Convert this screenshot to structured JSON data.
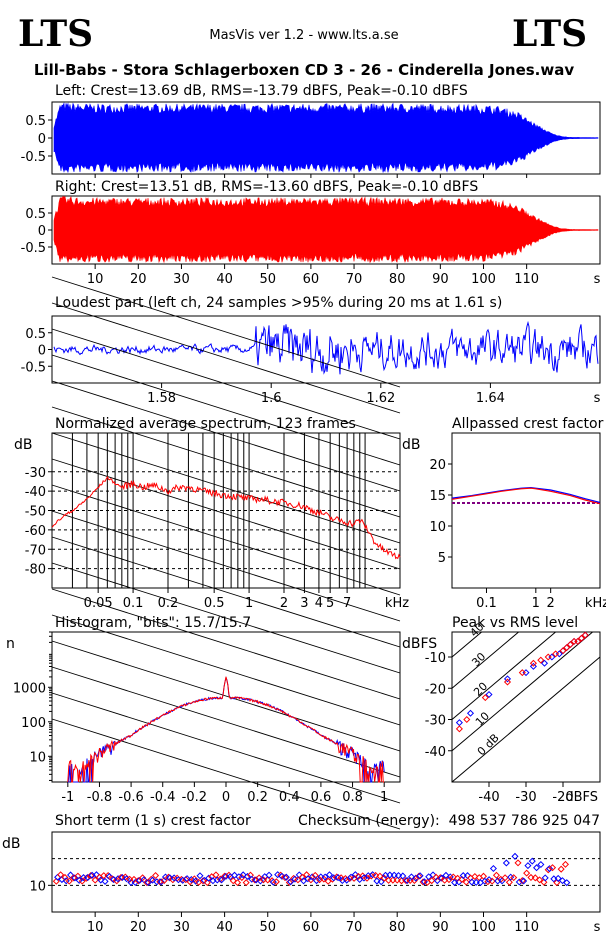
{
  "header": {
    "logo_left": "LTS",
    "logo_right": "LTS",
    "app_version": "MasVis ver 1.2 - www.lts.a.se",
    "track_title": "Lill-Babs - Stora Schlagerboxen CD 3 - 26 - Cinderella Jones.wav"
  },
  "colors": {
    "left": "#0000ff",
    "right": "#ff0000",
    "grid": "#000000",
    "ref": "#800080"
  },
  "chart_data": [
    {
      "id": "left-waveform",
      "type": "area",
      "title": "Left: Crest=13.69 dB, RMS=-13.79 dBFS, Peak=-0.10 dBFS",
      "ylim": [
        -1,
        1
      ],
      "xlim": [
        0,
        127
      ],
      "yticks": [
        0.5,
        0,
        -0.5
      ],
      "ytick_labels": [
        "0.5",
        "0",
        "-0.5"
      ],
      "envelope": {
        "x": [
          0,
          2,
          4,
          10,
          40,
          80,
          100,
          104,
          108,
          112,
          116,
          118,
          120,
          127
        ],
        "amp": [
          0.2,
          1.0,
          0.98,
          0.95,
          0.95,
          0.96,
          0.93,
          0.88,
          0.72,
          0.4,
          0.12,
          0.05,
          0.02,
          0.01
        ]
      }
    },
    {
      "id": "right-waveform",
      "type": "area",
      "title": "Right: Crest=13.51 dB, RMS=-13.60 dBFS, Peak=-0.10 dBFS",
      "ylim": [
        -1,
        1
      ],
      "xlim": [
        0,
        127
      ],
      "yticks": [
        0.5,
        0,
        -0.5
      ],
      "ytick_labels": [
        "0.5",
        "0",
        "-0.5"
      ],
      "xticks": [
        10,
        20,
        30,
        40,
        50,
        60,
        70,
        80,
        90,
        100,
        110
      ],
      "xtick_labels": [
        "10",
        "20",
        "30",
        "40",
        "50",
        "60",
        "70",
        "80",
        "90",
        "100",
        "110"
      ],
      "xunit": "s",
      "envelope": {
        "x": [
          0,
          2,
          4,
          10,
          40,
          80,
          100,
          104,
          108,
          112,
          116,
          118,
          120,
          127
        ],
        "amp": [
          0.2,
          1.0,
          0.98,
          0.95,
          0.95,
          0.96,
          0.93,
          0.88,
          0.72,
          0.4,
          0.12,
          0.05,
          0.02,
          0.01
        ]
      }
    },
    {
      "id": "loudest-part",
      "type": "line",
      "title": "Loudest part (left  ch, 24 samples >95% during 20 ms at 1.61 s)",
      "xlim": [
        1.56,
        1.66
      ],
      "ylim": [
        -1,
        1
      ],
      "yticks": [
        0.5,
        0,
        -0.5
      ],
      "ytick_labels": [
        "0.5",
        "0",
        "-0.5"
      ],
      "xticks": [
        1.58,
        1.6,
        1.62,
        1.64
      ],
      "xtick_labels": [
        "1.58",
        "1.6",
        "1.62",
        "1.64"
      ],
      "xunit": "s"
    },
    {
      "id": "avg-spectrum",
      "type": "line",
      "title": "Normalized average spectrum, 123 frames",
      "ylabel": "dB",
      "xscale": "log",
      "xlim": [
        0.02,
        20
      ],
      "ylim": [
        -90,
        -10
      ],
      "yticks": [
        -30,
        -40,
        -50,
        -60,
        -70,
        -80
      ],
      "ytick_labels": [
        "-30",
        "-40",
        "-50",
        "-60",
        "-70",
        "-80"
      ],
      "xticks": [
        0.05,
        0.1,
        0.2,
        0.5,
        1,
        2,
        3,
        4,
        5,
        7
      ],
      "xtick_labels": [
        "0.05",
        "0.1",
        "0.2",
        "0.5",
        "1",
        "2",
        "3",
        "4",
        "5",
        "7"
      ],
      "xunit": "kHz",
      "x": [
        0.02,
        0.025,
        0.03,
        0.04,
        0.05,
        0.06,
        0.07,
        0.08,
        0.1,
        0.12,
        0.15,
        0.2,
        0.25,
        0.3,
        0.4,
        0.5,
        0.6,
        0.8,
        1,
        1.2,
        1.5,
        2,
        2.5,
        3,
        3.5,
        4,
        4.5,
        5,
        6,
        7,
        8,
        9,
        10,
        12,
        14,
        16,
        18,
        20
      ],
      "y": [
        -58,
        -53,
        -50,
        -44,
        -38,
        -33,
        -36,
        -38,
        -36,
        -38,
        -37,
        -40,
        -38,
        -38,
        -40,
        -41,
        -42,
        -43,
        -44,
        -44,
        -45,
        -46,
        -47,
        -48,
        -50,
        -51,
        -52,
        -54,
        -55,
        -56,
        -57,
        -55,
        -58,
        -66,
        -70,
        -72,
        -73,
        -75
      ]
    },
    {
      "id": "allpassed-crest",
      "type": "line",
      "title": "Allpassed crest factor",
      "ylabel": "dB",
      "xscale": "log",
      "xlim": [
        0.02,
        20
      ],
      "ylim": [
        0,
        25
      ],
      "yticks": [
        20,
        15,
        10,
        5
      ],
      "ytick_labels": [
        "20",
        "15",
        "10",
        "5"
      ],
      "xticks": [
        0.1,
        1,
        2
      ],
      "xtick_labels": [
        "0.1",
        "1",
        "2"
      ],
      "xunit": "kHz",
      "reference_db": 13.7,
      "series": [
        {
          "x": [
            0.02,
            0.05,
            0.1,
            0.2,
            0.5,
            0.8,
            1,
            2,
            5,
            10,
            20
          ],
          "y": [
            14.5,
            14.9,
            15.3,
            15.7,
            16.1,
            16.2,
            16.1,
            15.8,
            15.1,
            14.4,
            13.8
          ]
        },
        {
          "x": [
            0.02,
            0.05,
            0.1,
            0.2,
            0.5,
            0.8,
            1,
            2,
            5,
            10,
            20
          ],
          "y": [
            14.3,
            14.8,
            15.2,
            15.6,
            16.0,
            16.1,
            16.0,
            15.6,
            14.9,
            14.2,
            13.6
          ]
        }
      ]
    },
    {
      "id": "histogram",
      "type": "line",
      "title": "Histogram, \"bits\": 15.7/15.7",
      "ylabel": "n",
      "yscale": "log",
      "xlim": [
        -1.1,
        1.1
      ],
      "ylim": [
        1.8,
        40000
      ],
      "yticks": [
        1000,
        100,
        10
      ],
      "ytick_labels": [
        "1000",
        "100",
        "10"
      ],
      "xticks": [
        -1,
        -0.8,
        -0.6,
        -0.4,
        -0.2,
        0,
        0.2,
        0.4,
        0.6,
        0.8,
        1
      ],
      "xtick_labels": [
        "-1",
        "-0.8",
        "-0.6",
        "-0.4",
        "-0.2",
        "0",
        "0.2",
        "0.4",
        "0.6",
        "0.8",
        "1"
      ],
      "x": [
        -1.0,
        -0.95,
        -0.9,
        -0.85,
        -0.8,
        -0.7,
        -0.6,
        -0.5,
        -0.4,
        -0.3,
        -0.2,
        -0.1,
        -0.02,
        0,
        0.02,
        0.1,
        0.2,
        0.3,
        0.4,
        0.5,
        0.6,
        0.7,
        0.8,
        0.85,
        0.9,
        0.95,
        1.0
      ],
      "y": [
        6,
        4,
        5,
        8,
        12,
        22,
        40,
        80,
        150,
        260,
        380,
        480,
        500,
        2000,
        500,
        480,
        380,
        260,
        150,
        80,
        40,
        22,
        12,
        8,
        5,
        4,
        6
      ]
    },
    {
      "id": "peak-vs-rms",
      "type": "scatter",
      "title": "Peak vs RMS level",
      "ylabel": "dBFS",
      "xlabel": "dBFS",
      "xlim": [
        -50,
        -10
      ],
      "ylim": [
        -50,
        -2
      ],
      "yticks": [
        -10,
        -20,
        -30,
        -40
      ],
      "ytick_labels": [
        "-10",
        "-20",
        "-30",
        "-40"
      ],
      "xticks": [
        -40,
        -30,
        -20
      ],
      "xtick_labels": [
        "-40",
        "-30",
        "-20"
      ],
      "diagonal_labels": [
        "40",
        "30",
        "20",
        "10",
        "0 dB"
      ],
      "series": [
        {
          "x": [
            -48,
            -45,
            -40,
            -35,
            -30,
            -28,
            -25,
            -23,
            -21,
            -20,
            -19,
            -18,
            -17,
            -16,
            -15,
            -14
          ],
          "y": [
            -31,
            -28,
            -22,
            -17,
            -15,
            -13,
            -12,
            -10,
            -9,
            -8,
            -7,
            -6,
            -5,
            -5,
            -4,
            -3
          ]
        },
        {
          "x": [
            -48,
            -46,
            -41,
            -35,
            -31,
            -28,
            -26,
            -24,
            -22,
            -20,
            -19,
            -18,
            -17,
            -16,
            -15,
            -14
          ],
          "y": [
            -33,
            -30,
            -23,
            -18,
            -15,
            -12,
            -11,
            -10,
            -9,
            -8,
            -7,
            -6,
            -5,
            -5,
            -4,
            -3
          ]
        }
      ]
    },
    {
      "id": "short-term-crest",
      "type": "scatter",
      "title": "Short term (1 s) crest factor",
      "ylabel": "dB",
      "xunit": "s",
      "xlim": [
        0,
        127
      ],
      "ylim": [
        0,
        30
      ],
      "yticks": [
        10
      ],
      "ytick_labels": [
        "10"
      ],
      "xticks": [
        10,
        20,
        30,
        40,
        50,
        60,
        70,
        80,
        90,
        100,
        110
      ],
      "xtick_labels": [
        "10",
        "20",
        "30",
        "40",
        "50",
        "60",
        "70",
        "80",
        "90",
        "100",
        "110"
      ],
      "reference_lines": [
        10,
        20
      ]
    }
  ],
  "checksum": {
    "label": "Checksum (energy):",
    "value": "498 537 786 925 047"
  }
}
